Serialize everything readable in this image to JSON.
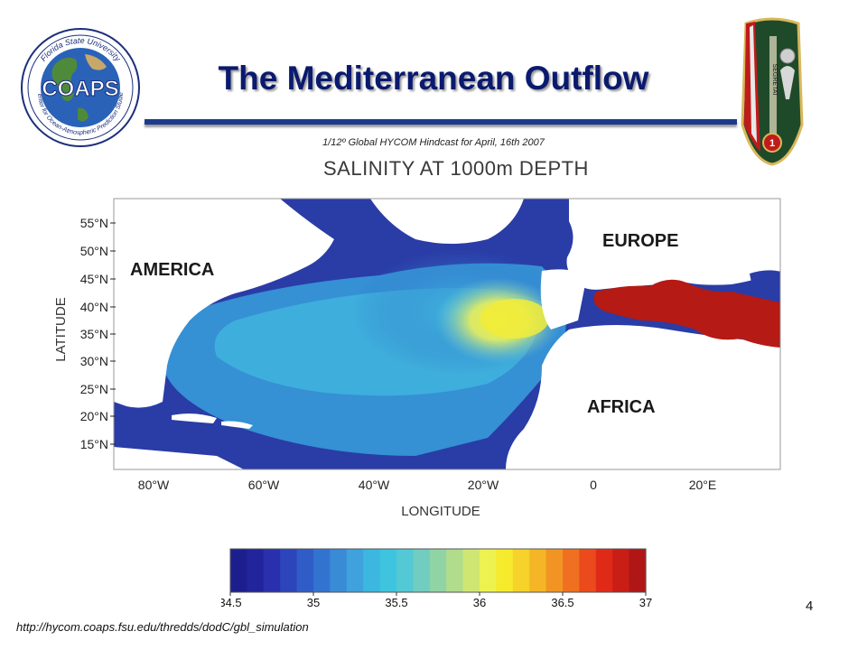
{
  "slide": {
    "title": "The Mediterranean Outflow",
    "subtitle": "1/12º Global HYCOM Hindcast for April, 16th  2007",
    "page_number": "4",
    "source_url": "http://hycom.coaps.fsu.edu/thredds/dodC/gbl_simulation"
  },
  "logo_left": {
    "text": "COAPS",
    "ring_top": "Florida State University",
    "ring_bottom": "Center for Ocean-Atmospheric Prediction Studies"
  },
  "logo_right": {
    "text": "SEGRETAI"
  },
  "map": {
    "heading": "SALINITY AT 1000m DEPTH",
    "y_axis_label": "LATITUDE",
    "x_axis_label": "LONGITUDE",
    "lat_ticks": [
      "55°N",
      "50°N",
      "45°N",
      "40°N",
      "35°N",
      "30°N",
      "25°N",
      "20°N",
      "15°N"
    ],
    "lon_ticks": [
      "80°W",
      "60°W",
      "40°W",
      "20°W",
      "0",
      "20°E"
    ],
    "region_labels": {
      "america": "AMERICA",
      "europe": "EUROPE",
      "africa": "AFRICA"
    }
  },
  "colorbar": {
    "ticks": [
      "34.5",
      "35",
      "35.5",
      "36",
      "36.5",
      "37"
    ],
    "min": 34.5,
    "max": 37,
    "colors": [
      "#1d1e8e",
      "#22249c",
      "#2a30ad",
      "#2c45bb",
      "#2f5cc6",
      "#3373d0",
      "#3a8bd6",
      "#3fa2dc",
      "#3cb7e0",
      "#3ec4de",
      "#52c9d5",
      "#70cdc0",
      "#90d4a6",
      "#b0dc8c",
      "#d0e673",
      "#eef250",
      "#f6ea2c",
      "#f6d22a",
      "#f4b626",
      "#f29424",
      "#ef7020",
      "#ea4a1c",
      "#e02a18",
      "#c81e16",
      "#b01616"
    ]
  },
  "colors": {
    "title": "#0a1a6e",
    "rule": "#1c3a8c",
    "land": "#ffffff",
    "mediterranean": "#b51a14"
  }
}
